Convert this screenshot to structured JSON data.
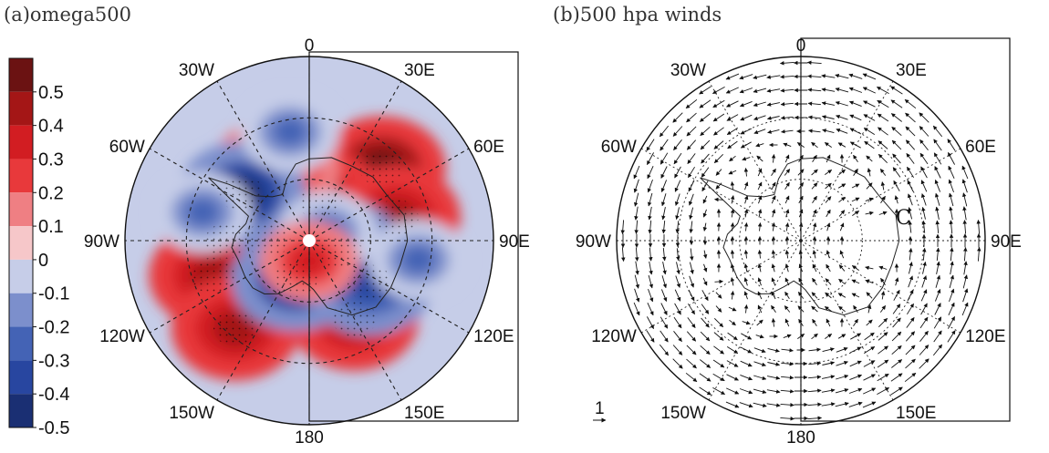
{
  "chart_data": [
    {
      "type": "heatmap",
      "projection": "south-polar-stereographic",
      "title": "(a)omega500",
      "colorbar": {
        "labels": [
          "0.5",
          "0.4",
          "0.3",
          "0.2",
          "0.1",
          "0",
          "-0.1",
          "-0.2",
          "-0.3",
          "-0.4",
          "-0.5"
        ],
        "colors": [
          "#6b1212",
          "#a41616",
          "#d21d22",
          "#e8393b",
          "#ef7f83",
          "#f6c7c9",
          "#c6cde8",
          "#7c8fcc",
          "#4463b5",
          "#2846a0",
          "#1a2f73"
        ]
      },
      "longitude_labels": [
        "0",
        "30E",
        "60E",
        "90E",
        "120E",
        "150E",
        "180",
        "150W",
        "120W",
        "90W",
        "60W",
        "30W"
      ],
      "stippling": "statistically significant areas",
      "regions": [
        {
          "lon": 45,
          "colat": 25,
          "value": 0.5
        },
        {
          "lon": 15,
          "colat": 10,
          "value": 0.4
        },
        {
          "lon": 75,
          "colat": 22,
          "value": 0.4
        },
        {
          "lon": -90,
          "colat": 20,
          "value": 0.5
        },
        {
          "lon": -88,
          "colat": 10,
          "value": 0.5
        },
        {
          "lon": -110,
          "colat": 25,
          "value": 0.4
        },
        {
          "lon": 150,
          "colat": 22,
          "value": 0.4
        },
        {
          "lon": -140,
          "colat": 28,
          "value": 0.4
        },
        {
          "lon": -15,
          "colat": 18,
          "value": 0.3
        },
        {
          "lon": -30,
          "colat": 22,
          "value": 0.3
        },
        {
          "lon": -55,
          "colat": 20,
          "value": -0.5
        },
        {
          "lon": -160,
          "colat": 10,
          "value": -0.5
        },
        {
          "lon": 110,
          "colat": 8,
          "value": -0.4
        },
        {
          "lon": 125,
          "colat": 18,
          "value": -0.4
        },
        {
          "lon": 65,
          "colat": 5,
          "value": -0.3
        },
        {
          "lon": -10,
          "colat": 27,
          "value": -0.3
        },
        {
          "lon": 100,
          "colat": 27,
          "value": -0.3
        },
        {
          "lon": 180,
          "colat": 5,
          "value": 0.3
        },
        {
          "lon": -75,
          "colat": 27,
          "value": -0.3
        }
      ]
    },
    {
      "type": "vector",
      "projection": "south-polar-stereographic",
      "title": "(b)500 hpa winds",
      "longitude_labels": [
        "0",
        "30E",
        "60E",
        "90E",
        "120E",
        "150E",
        "180",
        "150W",
        "120W",
        "90W",
        "60W",
        "30W"
      ],
      "annotations": [
        {
          "text": "C"
        }
      ],
      "reference_vector_label": "1",
      "flow": "cyclonic circulation centred near 90E; strong westerlies around outer ring"
    }
  ]
}
